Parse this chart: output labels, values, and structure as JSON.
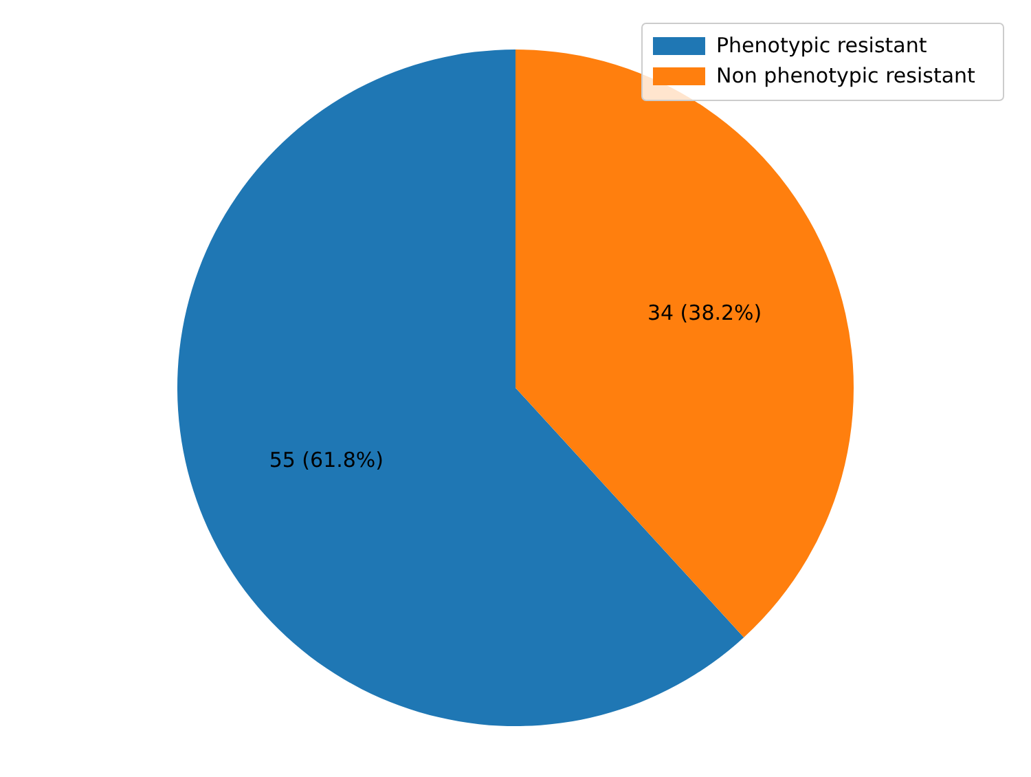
{
  "chart_data": {
    "type": "pie",
    "categories": [
      "Phenotypic resistant",
      "Non phenotypic resistant"
    ],
    "values": [
      55,
      34
    ],
    "colors": [
      "#1f77b4",
      "#ff7f0e"
    ],
    "value_labels": [
      "55 (61.8%)",
      "34 (38.2%)"
    ],
    "legend": "top right"
  }
}
